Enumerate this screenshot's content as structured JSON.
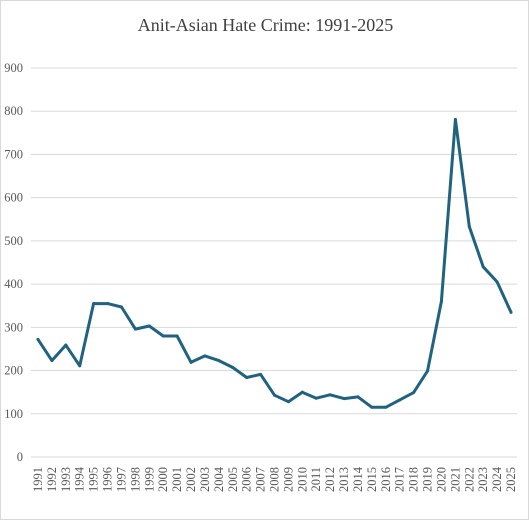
{
  "chart_data": {
    "type": "line",
    "title": "Anit-Asian Hate Crime: 1991-2025",
    "xlabel": "",
    "ylabel": "",
    "ylim": [
      0,
      900
    ],
    "grid": true,
    "legend": "none",
    "colors": {
      "line": "#1f6380",
      "grid": "#d9d9d9",
      "text": "#595959"
    },
    "y_ticks": [
      "0",
      "100",
      "200",
      "300",
      "400",
      "500",
      "600",
      "700",
      "800",
      "900"
    ],
    "categories": [
      "1991",
      "1992",
      "1993",
      "1994",
      "1995",
      "1996",
      "1997",
      "1998",
      "1999",
      "2000",
      "2001",
      "2002",
      "2003",
      "2004",
      "2005",
      "2006",
      "2007",
      "2008",
      "2009",
      "2010",
      "2011",
      "2012",
      "2013",
      "2014",
      "2015",
      "2016",
      "2017",
      "2018",
      "2019",
      "2020",
      "2021",
      "2022",
      "2023",
      "2024",
      "2025"
    ],
    "values": [
      272,
      223,
      259,
      211,
      355,
      355,
      347,
      296,
      303,
      280,
      280,
      219,
      234,
      223,
      207,
      184,
      191,
      143,
      128,
      150,
      136,
      144,
      135,
      139,
      115,
      115,
      132,
      149,
      199,
      360,
      781,
      533,
      440,
      405,
      335
    ]
  }
}
